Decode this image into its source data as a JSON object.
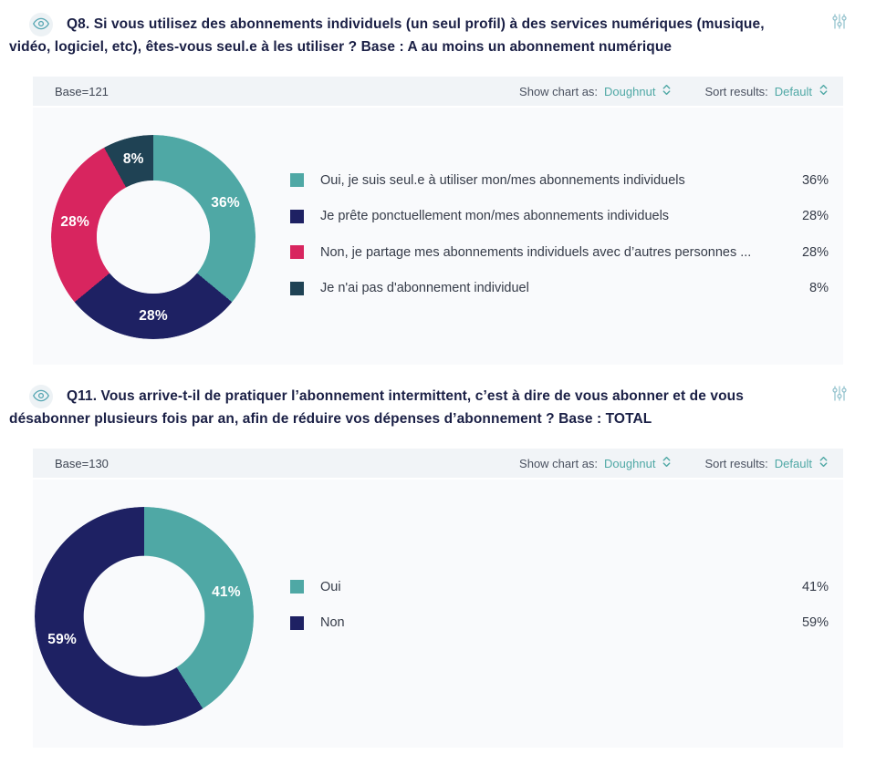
{
  "colors": {
    "accent_teal": "#4FA8A5",
    "navy": "#1E2163",
    "pink": "#D8255F",
    "dark_slate": "#1F4254",
    "title_navy": "#1A1F45",
    "icon_teal": "#8FC0CB"
  },
  "controls": {
    "show_chart_as_label": "Show chart as:",
    "show_chart_as_value": "Doughnut",
    "sort_results_label": "Sort results:",
    "sort_results_value": "Default"
  },
  "chart_data": [
    {
      "type": "doughnut",
      "title": "Q8. Si vous utilisez des abonnements individuels (un seul profil) à des services numériques (musique, vidéo, logiciel, etc), êtes-vous seul.e à les utiliser ? Base : A au moins un abonnement numérique",
      "base": "Base=121",
      "labels": [
        "Oui, je suis seul.e à utiliser mon/mes abonnements individuels",
        "Je prête ponctuellement mon/mes abonnements individuels",
        "Non, je partage mes abonnements individuels avec d’autres personnes ...",
        "Je n'ai pas d'abonnement individuel"
      ],
      "values": [
        36,
        28,
        28,
        8
      ],
      "colors": [
        "#4FA8A5",
        "#1E2163",
        "#D8255F",
        "#1F4254"
      ],
      "legend_position": "right",
      "label_format": "percent"
    },
    {
      "type": "doughnut",
      "title": "Q11. Vous arrive-t-il de pratiquer l’abonnement intermittent, c’est à dire de vous abonner et de vous désabonner plusieurs fois par an, afin de réduire vos dépenses d’abonnement ? Base : TOTAL",
      "base": "Base=130",
      "labels": [
        "Oui",
        "Non"
      ],
      "values": [
        41,
        59
      ],
      "colors": [
        "#4FA8A5",
        "#1E2163"
      ],
      "legend_position": "right",
      "label_format": "percent"
    }
  ]
}
